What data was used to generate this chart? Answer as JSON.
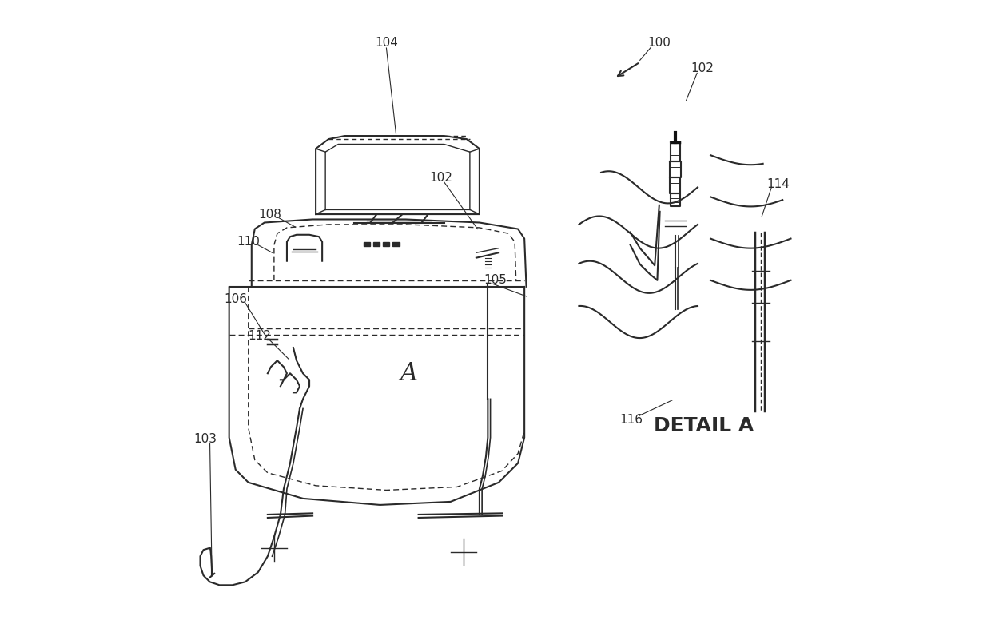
{
  "bg_color": "#ffffff",
  "line_color": "#2a2a2a",
  "line_width": 1.5,
  "detail_a_text": "DETAIL A",
  "label_A": [
    0.38,
    0.435
  ],
  "font_size": 11,
  "font_size_detail": 18
}
